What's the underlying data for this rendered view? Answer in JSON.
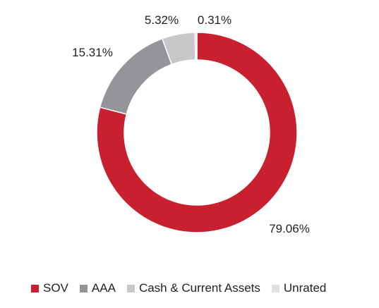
{
  "chart_data": {
    "type": "pie",
    "donut": true,
    "categories": [
      "SOV",
      "AAA",
      "Cash & Current Assets",
      "Unrated"
    ],
    "values": [
      79.06,
      15.31,
      5.32,
      0.31
    ],
    "labels": [
      "79.06%",
      "15.31%",
      "5.32%",
      "0.31%"
    ],
    "colors": [
      "#c8202f",
      "#939598",
      "#c7c8ca",
      "#dfe0e1"
    ],
    "legend_position": "bottom",
    "start": "top, clockwise"
  }
}
